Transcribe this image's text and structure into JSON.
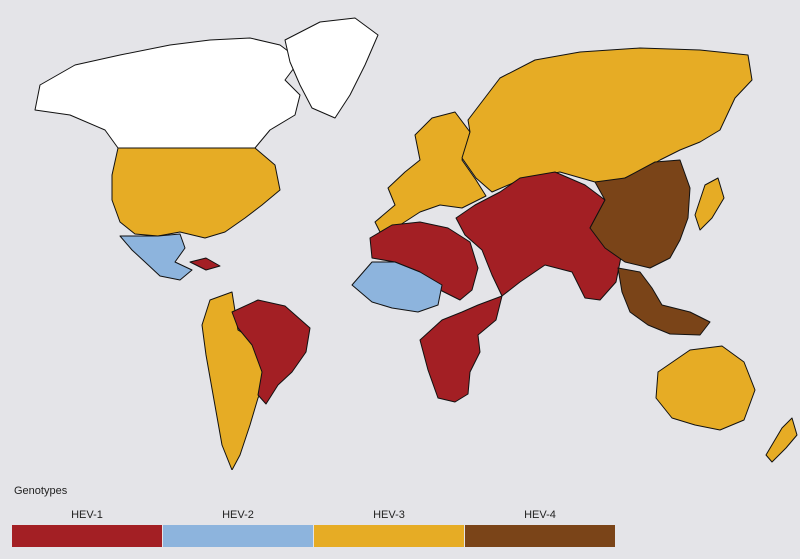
{
  "legend": {
    "title": "Genotypes",
    "items": [
      {
        "label": "HEV-1",
        "color": "#a31f24"
      },
      {
        "label": "HEV-2",
        "color": "#8db4dd"
      },
      {
        "label": "HEV-3",
        "color": "#e6ac25"
      },
      {
        "label": "HEV-4",
        "color": "#7a4418"
      }
    ],
    "unassigned_color": "#ffffff"
  },
  "regions": [
    {
      "name": "north-america-north",
      "genotype": "none"
    },
    {
      "name": "greenland",
      "genotype": "none"
    },
    {
      "name": "usa-canada",
      "genotype": "HEV-3"
    },
    {
      "name": "mexico",
      "genotype": "HEV-2"
    },
    {
      "name": "cuba",
      "genotype": "HEV-1"
    },
    {
      "name": "brazil",
      "genotype": "HEV-1"
    },
    {
      "name": "south-america-west",
      "genotype": "HEV-3"
    },
    {
      "name": "europe",
      "genotype": "HEV-3"
    },
    {
      "name": "russia",
      "genotype": "HEV-3"
    },
    {
      "name": "north-africa",
      "genotype": "HEV-1"
    },
    {
      "name": "west-africa",
      "genotype": "HEV-2"
    },
    {
      "name": "southern-africa",
      "genotype": "HEV-1"
    },
    {
      "name": "middle-east-south-asia",
      "genotype": "HEV-1"
    },
    {
      "name": "china",
      "genotype": "HEV-4"
    },
    {
      "name": "southeast-asia",
      "genotype": "HEV-4"
    },
    {
      "name": "japan",
      "genotype": "HEV-3"
    },
    {
      "name": "australia",
      "genotype": "HEV-3"
    },
    {
      "name": "new-zealand",
      "genotype": "HEV-3"
    }
  ]
}
